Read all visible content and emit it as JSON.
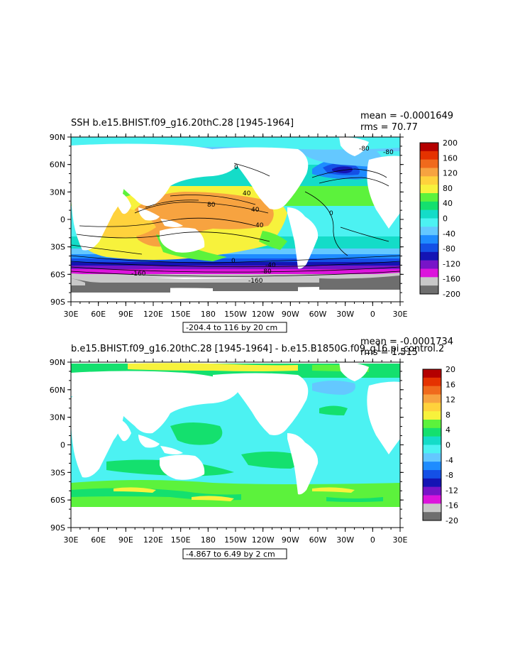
{
  "panels": [
    {
      "title": "SSH  b.e15.BHIST.f09_g16.20thC.28  [1945-1964]",
      "mean_text": "mean = -0.0001649",
      "rms_text": "rms = 70.77",
      "range_text": "-204.4 to 116 by 20 cm",
      "lat_labels": [
        "90N",
        "60N",
        "30N",
        "0",
        "30S",
        "60S",
        "90S"
      ],
      "lon_labels": [
        "30E",
        "60E",
        "90E",
        "120E",
        "150E",
        "180",
        "150W",
        "120W",
        "90W",
        "60W",
        "30W",
        "0",
        "30E"
      ],
      "colorbar": {
        "labels": [
          "200",
          "160",
          "120",
          "80",
          "40",
          "0",
          "-40",
          "-80",
          "-120",
          "-160",
          "-200"
        ],
        "colors": [
          "#b40000",
          "#e53200",
          "#f06a1c",
          "#f7a340",
          "#ffd23c",
          "#f7f23c",
          "#5cf23c",
          "#14e06e",
          "#14dcc8",
          "#4cf2f2",
          "#64c8ff",
          "#1e8cff",
          "#1450e6",
          "#1414b4",
          "#7814c8",
          "#dc14dc",
          "#c8c8c8",
          "#6e6e6e"
        ]
      },
      "contour_labels": [
        "80",
        "40",
        "40",
        "40",
        "0",
        "0",
        "0",
        "-80",
        "-80",
        "-40",
        "-160",
        "-160",
        "-80"
      ]
    },
    {
      "title": "b.e15.BHIST.f09_g16.20thC.28  [1945-1964]  -  b.e15.B1850G.f09_g16.pi_control.2",
      "mean_text": "mean = -0.0001734",
      "rms_text": "rms = 1.515",
      "range_text": "-4.867 to 6.49 by 2 cm",
      "lat_labels": [
        "90N",
        "60N",
        "30N",
        "0",
        "30S",
        "60S",
        "90S"
      ],
      "lon_labels": [
        "30E",
        "60E",
        "90E",
        "120E",
        "150E",
        "180",
        "150W",
        "120W",
        "90W",
        "60W",
        "30W",
        "0",
        "30E"
      ],
      "colorbar": {
        "labels": [
          "20",
          "16",
          "12",
          "8",
          "4",
          "0",
          "-4",
          "-8",
          "-12",
          "-16",
          "-20"
        ],
        "colors": [
          "#b40000",
          "#e53200",
          "#f06a1c",
          "#f7a340",
          "#ffd23c",
          "#f7f23c",
          "#5cf23c",
          "#14e06e",
          "#14dcc8",
          "#4cf2f2",
          "#64c8ff",
          "#1e8cff",
          "#1450e6",
          "#1414b4",
          "#7814c8",
          "#dc14dc",
          "#c8c8c8",
          "#6e6e6e"
        ]
      }
    }
  ]
}
